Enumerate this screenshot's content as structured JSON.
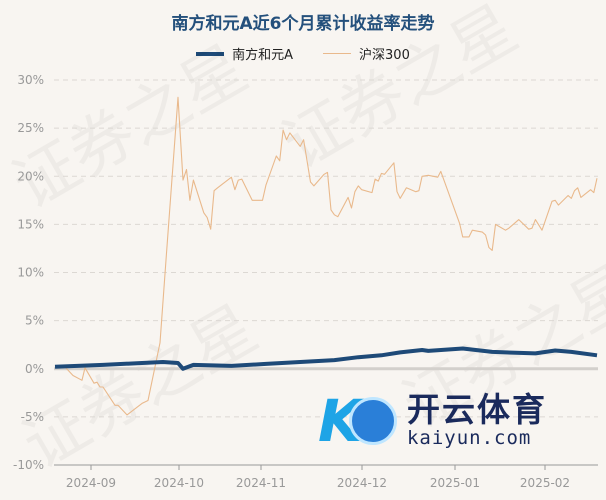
{
  "chart_data": {
    "type": "line",
    "title": "南方和元A近6个月累计收益率走势",
    "legend_position": "top",
    "grid": true,
    "ylim": [
      -10,
      30
    ],
    "y_ticks": [
      "30%",
      "25%",
      "20%",
      "15%",
      "10%",
      "5%",
      "0%",
      "-5%",
      "-10%"
    ],
    "x_ticks": [
      "2024-09",
      "2024-10",
      "2024-11",
      "2024-12",
      "2025-01",
      "2025-02"
    ],
    "series": [
      {
        "name": "南方和元A",
        "color": "#1e4a78",
        "points": [
          [
            "2024-08-20",
            0.2
          ],
          [
            "2024-09-05",
            0.4
          ],
          [
            "2024-09-18",
            0.6
          ],
          [
            "2024-09-25",
            0.7
          ],
          [
            "2024-09-30",
            0.6
          ],
          [
            "2024-10-08",
            0.0
          ],
          [
            "2024-10-11",
            0.4
          ],
          [
            "2024-10-22",
            0.3
          ],
          [
            "2024-11-01",
            0.5
          ],
          [
            "2024-11-11",
            0.7
          ],
          [
            "2024-11-21",
            0.9
          ],
          [
            "2024-11-28",
            1.2
          ],
          [
            "2024-12-05",
            1.4
          ],
          [
            "2024-12-11",
            1.7
          ],
          [
            "2024-12-18",
            1.95
          ],
          [
            "2024-12-20",
            1.85
          ],
          [
            "2024-12-31",
            2.1
          ],
          [
            "2025-01-09",
            1.75
          ],
          [
            "2025-01-22",
            1.6
          ],
          [
            "2025-02-06",
            1.9
          ],
          [
            "2025-02-11",
            1.75
          ],
          [
            "2025-02-19",
            1.4
          ]
        ]
      },
      {
        "name": "沪深300",
        "color": "#e9b98c",
        "points": [
          [
            "2024-08-20",
            0.2
          ],
          [
            "2024-08-23",
            0.3
          ],
          [
            "2024-08-26",
            -0.7
          ],
          [
            "2024-08-29",
            -1.2
          ],
          [
            "2024-08-30",
            0.1
          ],
          [
            "2024-09-02",
            -1.5
          ],
          [
            "2024-09-03",
            -1.4
          ],
          [
            "2024-09-04",
            -1.9
          ],
          [
            "2024-09-05",
            -1.9
          ],
          [
            "2024-09-09",
            -3.8
          ],
          [
            "2024-09-10",
            -3.8
          ],
          [
            "2024-09-13",
            -4.8
          ],
          [
            "2024-09-18",
            -3.6
          ],
          [
            "2024-09-20",
            -3.3
          ],
          [
            "2024-09-23",
            1.2
          ],
          [
            "2024-09-24",
            2.7
          ],
          [
            "2024-09-26",
            11.3
          ],
          [
            "2024-09-30",
            28.2
          ],
          [
            "2024-10-08",
            19.6
          ],
          [
            "2024-10-09",
            20.7
          ],
          [
            "2024-10-10",
            17.5
          ],
          [
            "2024-10-11",
            19.6
          ],
          [
            "2024-10-14",
            16.2
          ],
          [
            "2024-10-15",
            15.7
          ],
          [
            "2024-10-16",
            14.5
          ],
          [
            "2024-10-17",
            18.5
          ],
          [
            "2024-10-18",
            18.8
          ],
          [
            "2024-10-22",
            19.9
          ],
          [
            "2024-10-23",
            18.6
          ],
          [
            "2024-10-24",
            19.6
          ],
          [
            "2024-10-25",
            19.7
          ],
          [
            "2024-10-28",
            17.5
          ],
          [
            "2024-10-31",
            17.5
          ],
          [
            "2024-11-01",
            19.1
          ],
          [
            "2024-11-04",
            22.1
          ],
          [
            "2024-11-05",
            21.6
          ],
          [
            "2024-11-06",
            24.8
          ],
          [
            "2024-11-07",
            23.8
          ],
          [
            "2024-11-08",
            24.5
          ],
          [
            "2024-11-11",
            23.1
          ],
          [
            "2024-11-12",
            23.8
          ],
          [
            "2024-11-14",
            19.4
          ],
          [
            "2024-11-15",
            19.0
          ],
          [
            "2024-11-18",
            20.2
          ],
          [
            "2024-11-19",
            20.4
          ],
          [
            "2024-11-20",
            16.5
          ],
          [
            "2024-11-21",
            16.0
          ],
          [
            "2024-11-22",
            15.8
          ],
          [
            "2024-11-25",
            17.8
          ],
          [
            "2024-11-26",
            16.7
          ],
          [
            "2024-11-27",
            18.4
          ],
          [
            "2024-11-28",
            19.0
          ],
          [
            "2024-11-29",
            18.6
          ],
          [
            "2024-12-02",
            18.3
          ],
          [
            "2024-12-03",
            19.7
          ],
          [
            "2024-12-04",
            19.5
          ],
          [
            "2024-12-05",
            20.3
          ],
          [
            "2024-12-06",
            20.2
          ],
          [
            "2024-12-09",
            21.4
          ],
          [
            "2024-12-10",
            18.4
          ],
          [
            "2024-12-11",
            17.7
          ],
          [
            "2024-12-13",
            18.8
          ],
          [
            "2024-12-16",
            18.4
          ],
          [
            "2024-12-17",
            18.5
          ],
          [
            "2024-12-18",
            20.0
          ],
          [
            "2024-12-20",
            20.1
          ],
          [
            "2024-12-23",
            19.9
          ],
          [
            "2024-12-24",
            20.5
          ],
          [
            "2024-12-27",
            17.8
          ],
          [
            "2024-12-30",
            15.1
          ],
          [
            "2024-12-31",
            13.7
          ],
          [
            "2025-01-02",
            13.7
          ],
          [
            "2025-01-03",
            14.4
          ],
          [
            "2025-01-06",
            14.2
          ],
          [
            "2025-01-07",
            13.9
          ],
          [
            "2025-01-08",
            12.6
          ],
          [
            "2025-01-09",
            12.3
          ],
          [
            "2025-01-10",
            15.0
          ],
          [
            "2025-01-13",
            14.4
          ],
          [
            "2025-01-14",
            14.6
          ],
          [
            "2025-01-16",
            15.2
          ],
          [
            "2025-01-17",
            15.5
          ],
          [
            "2025-01-20",
            14.5
          ],
          [
            "2025-01-21",
            14.6
          ],
          [
            "2025-01-22",
            15.5
          ],
          [
            "2025-01-24",
            14.4
          ],
          [
            "2025-02-05",
            17.4
          ],
          [
            "2025-02-06",
            17.5
          ],
          [
            "2025-02-07",
            17.0
          ],
          [
            "2025-02-10",
            18.0
          ],
          [
            "2025-02-11",
            17.7
          ],
          [
            "2025-02-12",
            18.5
          ],
          [
            "2025-02-13",
            18.8
          ],
          [
            "2025-02-14",
            17.8
          ],
          [
            "2025-02-17",
            18.6
          ],
          [
            "2025-02-18",
            18.3
          ],
          [
            "2025-02-19",
            19.8
          ]
        ]
      }
    ]
  },
  "watermark": "证券之星",
  "logo": {
    "cn": "开云体育",
    "en": "kaiyun.com"
  }
}
